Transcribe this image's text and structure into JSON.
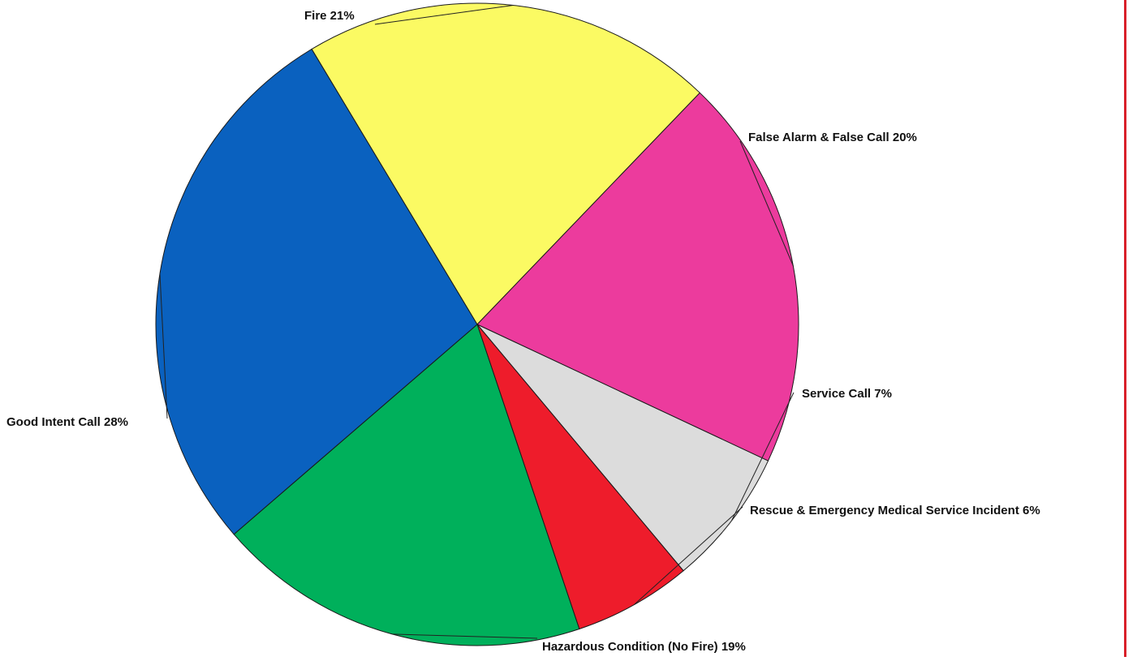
{
  "chart_data": {
    "type": "pie",
    "title": "",
    "slices": [
      {
        "label": "Fire 21%",
        "category": "Fire",
        "value": 21,
        "color": "#fbfa63"
      },
      {
        "label": "False Alarm & False Call 20%",
        "category": "False Alarm & False Call",
        "value": 20,
        "color": "#ec3b9d"
      },
      {
        "label": "Service Call 7%",
        "category": "Service Call",
        "value": 7,
        "color": "#dcdcdc"
      },
      {
        "label": "Rescue & Emergency Medical Service Incident 6%",
        "category": "Rescue & Emergency Medical Service Incident",
        "value": 6,
        "color": "#ee1c2b"
      },
      {
        "label": "Hazardous Condition (No Fire) 19%",
        "category": "Hazardous Condition (No Fire)",
        "value": 19,
        "color": "#00b05b"
      },
      {
        "label": "Good Intent Call 28%",
        "category": "Good Intent Call",
        "value": 28,
        "color": "#0a61bf"
      }
    ],
    "start_angle_deg": -31,
    "direction": "clockwise",
    "legend": "none"
  },
  "colors": {
    "border_accent": "#d9202a",
    "slice_outline": "#1a1a1a"
  }
}
